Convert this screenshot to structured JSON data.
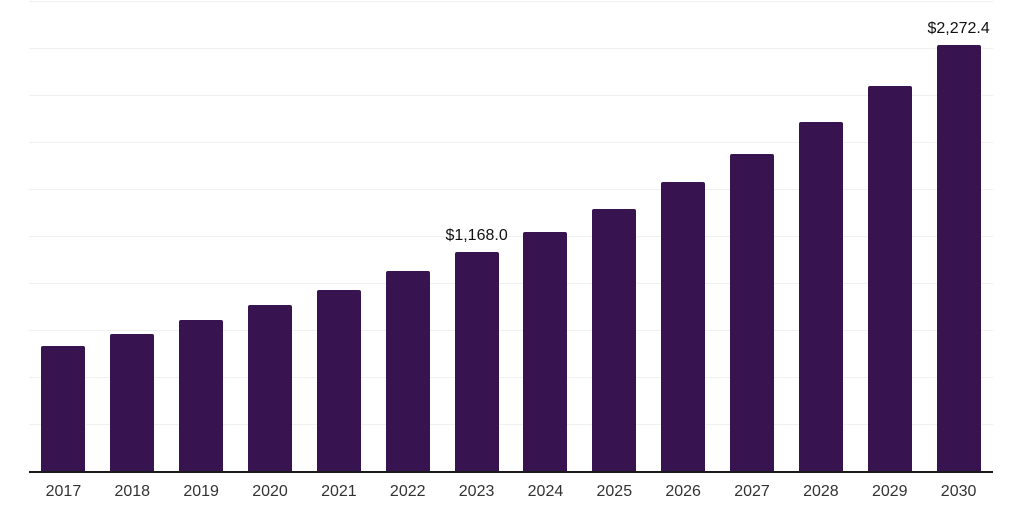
{
  "chart_data": {
    "type": "bar",
    "title": "",
    "xlabel": "",
    "ylabel": "",
    "categories": [
      "2017",
      "2018",
      "2019",
      "2020",
      "2021",
      "2022",
      "2023",
      "2024",
      "2025",
      "2026",
      "2027",
      "2028",
      "2029",
      "2030"
    ],
    "values": [
      670,
      735,
      808,
      887,
      966,
      1068,
      1168.0,
      1277,
      1399,
      1541,
      1693,
      1861,
      2051,
      2272.4
    ],
    "point_labels": [
      "",
      "",
      "",
      "",
      "",
      "",
      "$1,168.0",
      "",
      "",
      "",
      "",
      "",
      "",
      "$2,272.4"
    ],
    "ylim": [
      0,
      2500
    ],
    "gridline_step": 250,
    "grid": "horizontal",
    "legend": "none",
    "y_tick_labels_visible": false
  },
  "colors": {
    "bar": "#371450",
    "gridline": "#f0f0f0",
    "axis_line": "#1a1a1a",
    "point_label_text": "#111111",
    "tick_label_text": "#333333",
    "background": "#ffffff"
  }
}
